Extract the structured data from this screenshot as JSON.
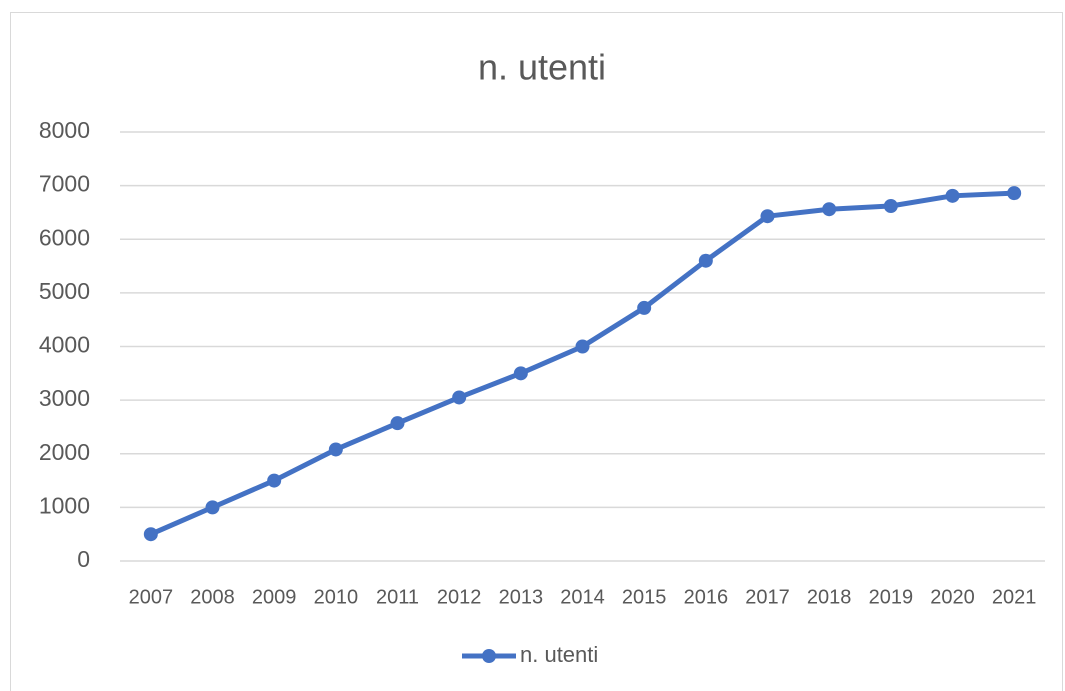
{
  "chart_data": {
    "type": "line",
    "title": "n. utenti",
    "categories": [
      "2007",
      "2008",
      "2009",
      "2010",
      "2011",
      "2012",
      "2013",
      "2014",
      "2015",
      "2016",
      "2017",
      "2018",
      "2019",
      "2020",
      "2021"
    ],
    "series": [
      {
        "name": "n. utenti",
        "color": "#4472c4",
        "values": [
          500,
          1000,
          1500,
          2080,
          2570,
          3050,
          3500,
          4000,
          4720,
          5600,
          6430,
          6560,
          6620,
          6810,
          6860
        ]
      }
    ],
    "ylim": [
      0,
      8000
    ],
    "yticks": [
      0,
      1000,
      2000,
      3000,
      4000,
      5000,
      6000,
      7000,
      8000
    ],
    "grid": true,
    "legend": "bottom"
  }
}
